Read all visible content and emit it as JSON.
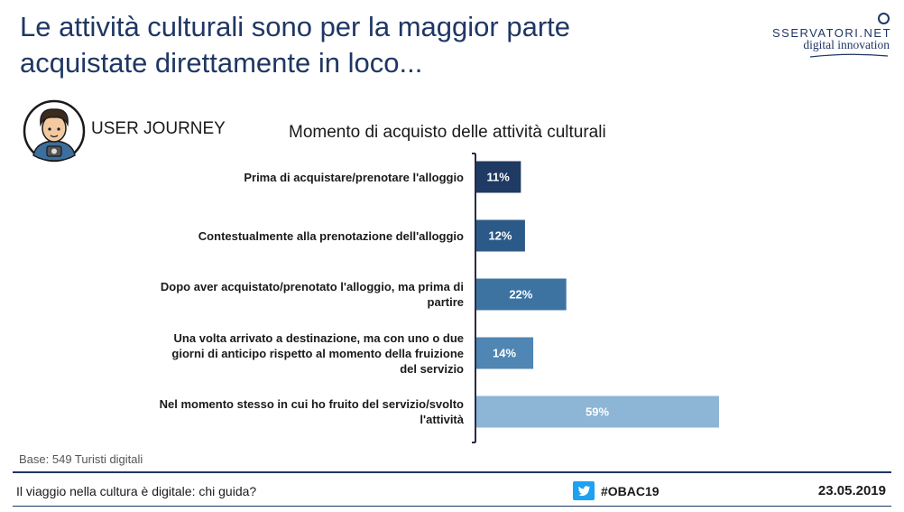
{
  "header": {
    "title": "Le attività culturali sono per la maggior parte acquistate direttamente in loco...",
    "logo_line1": "SSERVATORI.NET",
    "logo_line2": "digital innovation"
  },
  "section_label": "USER JOURNEY",
  "avatar_icon": "user-avatar-icon",
  "chart_data": {
    "type": "bar",
    "orientation": "horizontal",
    "title": "Momento di acquisto delle attività culturali",
    "categories": [
      "Prima di acquistare/prenotare l'alloggio",
      "Contestualmente alla prenotazione dell'alloggio",
      "Dopo aver acquistato/prenotato l'alloggio, ma prima di partire",
      "Una volta arrivato a destinazione, ma con uno o due giorni di anticipo rispetto al momento della fruizione del servizio",
      "Nel momento stesso in cui ho fruito del servizio/svolto l'attività"
    ],
    "values": [
      11,
      12,
      22,
      14,
      59
    ],
    "labels": [
      "11%",
      "12%",
      "22%",
      "14%",
      "59%"
    ],
    "colors": [
      "#1f3a63",
      "#2c5a88",
      "#3d73a1",
      "#4f86b3",
      "#8cb5d6"
    ],
    "xlim": [
      0,
      60
    ],
    "grid": false,
    "legend": "none"
  },
  "base_note": "Base: 549 Turisti digitali",
  "footer": {
    "left": "Il viaggio nella cultura è digitale: chi guida?",
    "hashtag": "#OBAC19",
    "date": "23.05.2019",
    "twitter_icon": "twitter-icon"
  }
}
